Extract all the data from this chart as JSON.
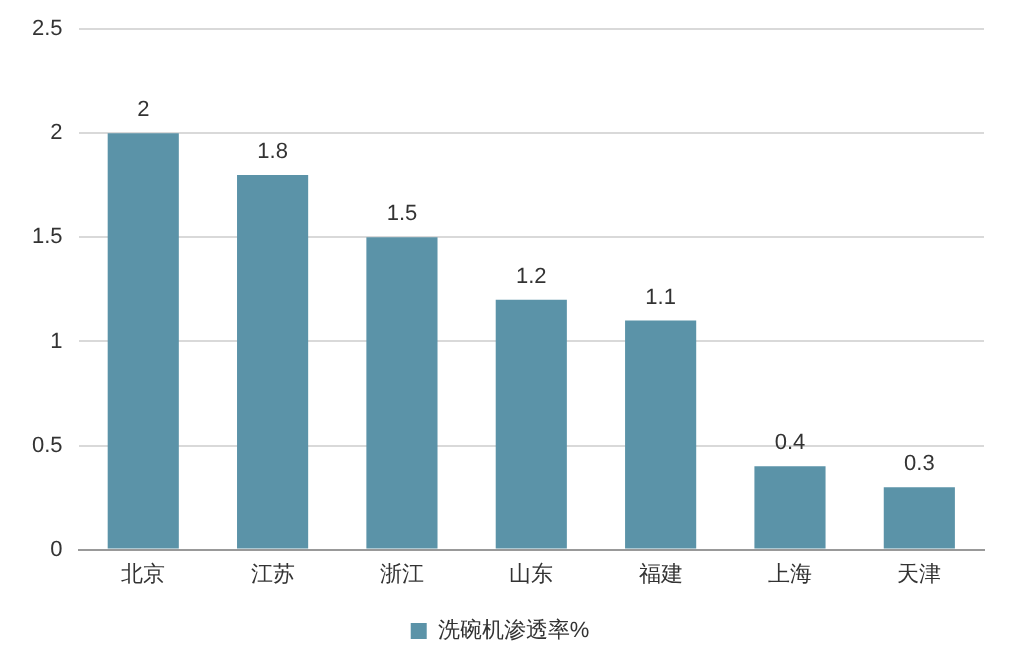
{
  "chart_data": {
    "type": "bar",
    "categories": [
      "北京",
      "江苏",
      "浙江",
      "山东",
      "福建",
      "上海",
      "天津"
    ],
    "series": [
      {
        "name": "洗碗机渗透率%",
        "color": "#5b93a8",
        "values": [
          2,
          1.8,
          1.5,
          1.2,
          1.1,
          0.4,
          0.3
        ]
      }
    ],
    "ylim": [
      0,
      2.5
    ],
    "yticks": [
      0,
      0.5,
      1,
      1.5,
      2,
      2.5
    ],
    "grid": "y",
    "legend": "bottom",
    "data_labels": true
  }
}
